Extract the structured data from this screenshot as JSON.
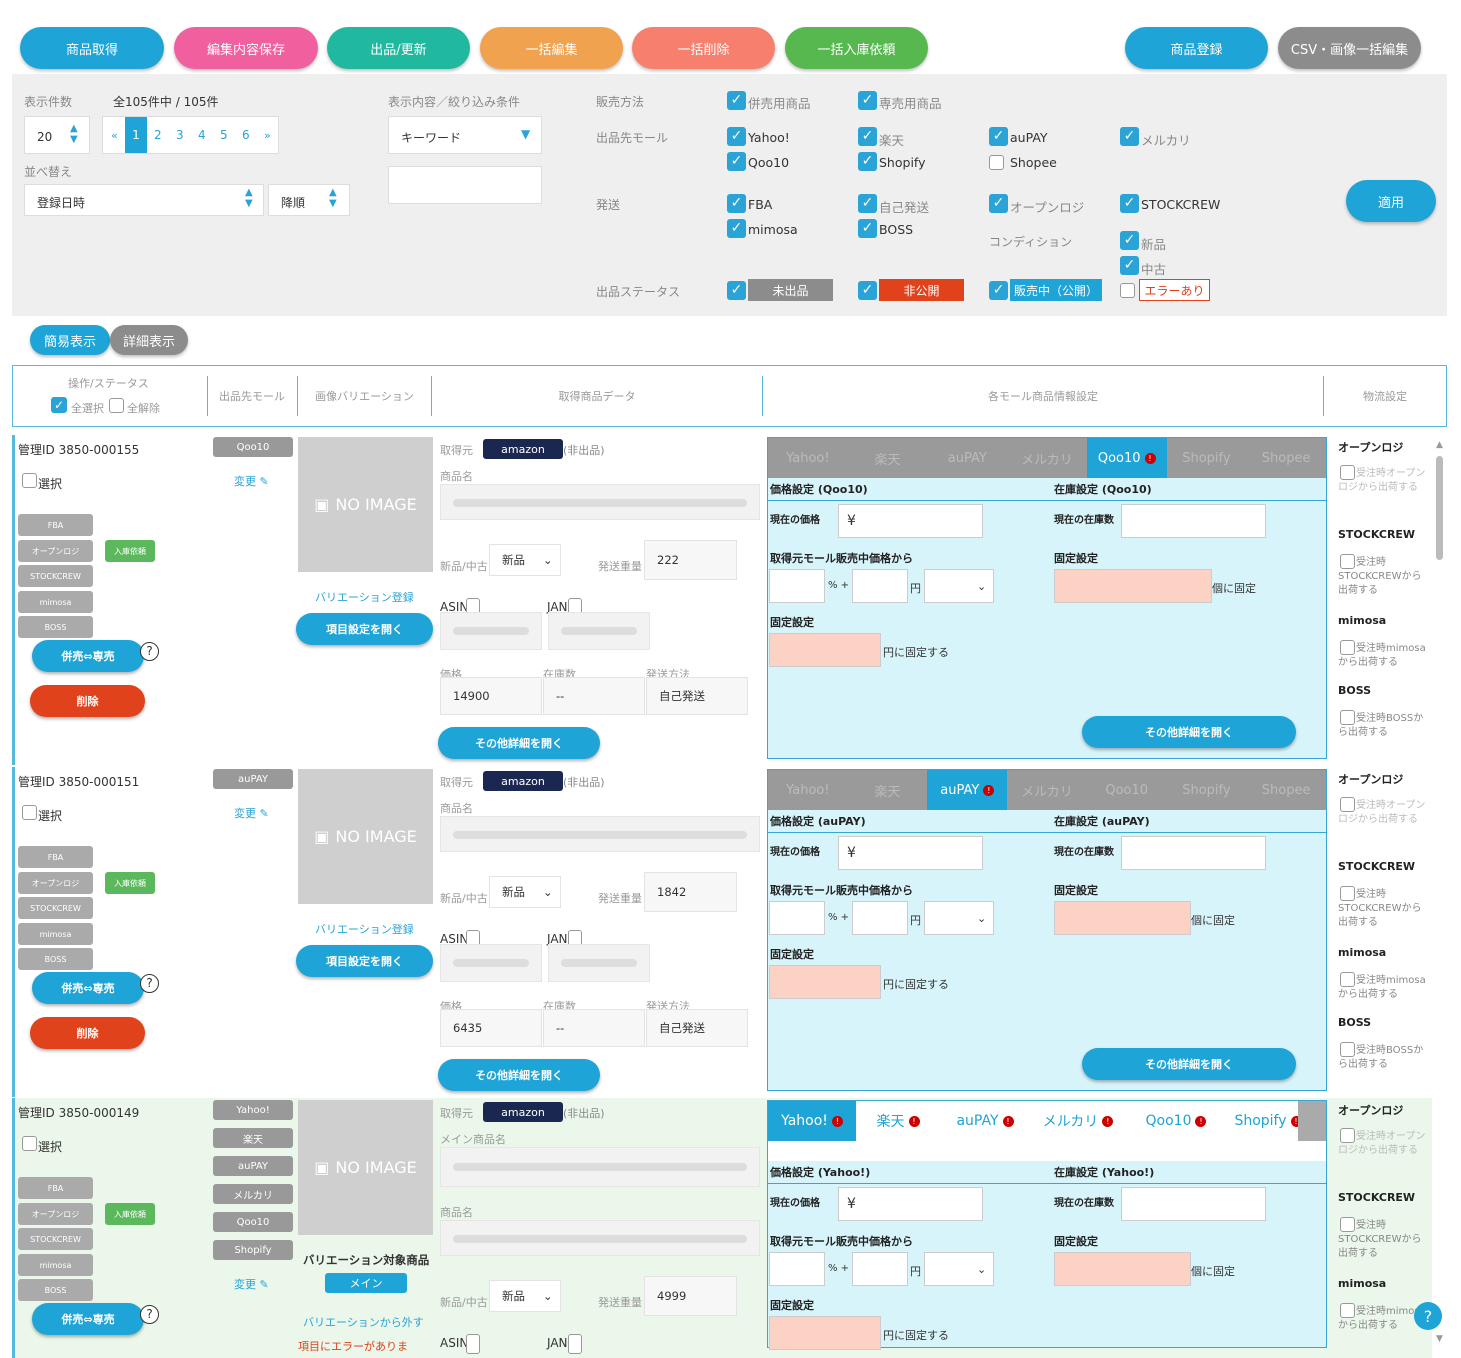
{
  "toolbar": {
    "get": "商品取得",
    "save": "編集内容保存",
    "publish": "出品/更新",
    "bulk_edit": "一括編集",
    "bulk_delete": "一括削除",
    "bulk_inbound": "一括入庫依頼",
    "register": "商品登録",
    "csv": "CSV・画像一括編集"
  },
  "colors": {
    "blue": "#1ea4d6",
    "pink": "#f0609e",
    "teal": "#20b9a0",
    "orange": "#f0a24e",
    "salmon": "#f67f6e",
    "green": "#56b84f",
    "gray": "#8c8c8c"
  },
  "filter": {
    "count_label": "表示件数",
    "total": "全105件中 / 105件",
    "per_page": "20",
    "pages": [
      "«",
      "1",
      "2",
      "3",
      "4",
      "5",
      "6",
      "»"
    ],
    "sort_label": "並べ替え",
    "sort_value": "登録日時",
    "order": "降順",
    "cond_label": "表示内容／絞り込み条件",
    "keyword": "キーワード",
    "sale_label": "販売方法",
    "sale": [
      "併売用商品",
      "専売用商品"
    ],
    "mall_label": "出品先モール",
    "malls": [
      "Yahoo!",
      "楽天",
      "auPAY",
      "メルカリ",
      "Qoo10",
      "Shopify",
      "Shopee"
    ],
    "ship_label": "発送",
    "ships": [
      "FBA",
      "自己発送",
      "オープンロジ",
      "STOCKCREW",
      "mimosa",
      "BOSS"
    ],
    "cond2_label": "コンディション",
    "conds": [
      "新品",
      "中古"
    ],
    "status_label": "出品ステータス",
    "statuses": [
      "未出品",
      "非公開",
      "販売中（公開）",
      "エラーあり"
    ],
    "apply": "適用"
  },
  "view": {
    "simple": "簡易表示",
    "detail": "詳細表示"
  },
  "header": {
    "ops": "操作/ステータス",
    "select_all": "全選択",
    "deselect_all": "全解除",
    "mall": "出品先モール",
    "variation": "画像バリエーション",
    "data": "取得商品データ",
    "settings": "各モール商品情報設定",
    "logistics": "物流設定"
  },
  "common": {
    "select": "選択",
    "change": "変更",
    "noimage": "NO IMAGE",
    "source": "取得元",
    "amazon": "amazon",
    "not_listed": "(非出品)",
    "name": "商品名",
    "main_name": "メイン商品名",
    "newused": "新品/中古",
    "new": "新品",
    "weight": "発送重量",
    "asin": "ASIN",
    "jan": "JAN",
    "price": "価格",
    "stock": "在庫数",
    "method": "発送方法",
    "self": "自己発送",
    "dash": "--",
    "more": "その他詳細を開く",
    "var_reg": "バリエーション登録",
    "open_item": "項目設定を開く",
    "var_target": "バリエーション対象商品",
    "main": "メイン",
    "var_remove": "バリエーションから外す",
    "err_note": "項目にエラーがありま",
    "concurrent": "併売⇔専売",
    "delete": "削除",
    "ship_tags": [
      "FBA",
      "オープンロジ",
      "STOCKCREW",
      "mimosa",
      "BOSS"
    ],
    "inbound": "入庫依頼",
    "cur_price": "現在の価格",
    "yen": "¥",
    "from_src": "取得元モール販売中価格から",
    "pct": "% +",
    "en": "円",
    "fixed": "固定設定",
    "fix_en": "円に固定する",
    "cur_stock": "現在の在庫数",
    "fix_qty": "個に固定",
    "logi": [
      {
        "t": "オープンロジ",
        "d": "受注時オープンロジから出荷する"
      },
      {
        "t": "STOCKCREW",
        "d": "受注時STOCKCREWから出荷する"
      },
      {
        "t": "mimosa",
        "d": "受注時mimosaから出荷する"
      },
      {
        "t": "BOSS",
        "d": "受注時BOSSから出荷する"
      }
    ]
  },
  "items": [
    {
      "id": "管理ID 3850-000155",
      "malls": [
        "Qoo10"
      ],
      "weight": "222",
      "price": "14900",
      "active_mall": "Qoo10",
      "price_title": "価格設定 (Qoo10)",
      "stock_title": "在庫設定 (Qoo10)",
      "tabs": [
        "Yahoo!",
        "楽天",
        "auPAY",
        "メルカリ",
        "Qoo10",
        "Shopify",
        "Shopee"
      ]
    },
    {
      "id": "管理ID 3850-000151",
      "malls": [
        "auPAY"
      ],
      "weight": "1842",
      "price": "6435",
      "active_mall": "auPAY",
      "price_title": "価格設定 (auPAY)",
      "stock_title": "在庫設定 (auPAY)",
      "tabs": [
        "Yahoo!",
        "楽天",
        "auPAY",
        "メルカリ",
        "Qoo10",
        "Shopify",
        "Shopee"
      ]
    },
    {
      "id": "管理ID 3850-000149",
      "malls": [
        "Yahoo!",
        "楽天",
        "auPAY",
        "メルカリ",
        "Qoo10",
        "Shopify"
      ],
      "weight": "4999",
      "price": "",
      "active_mall": "Yahoo!",
      "price_title": "価格設定 (Yahoo!)",
      "stock_title": "在庫設定 (Yahoo!)",
      "tabs": [
        "Yahoo!",
        "楽天",
        "auPAY",
        "メルカリ",
        "Qoo10",
        "Shopify"
      ]
    }
  ]
}
